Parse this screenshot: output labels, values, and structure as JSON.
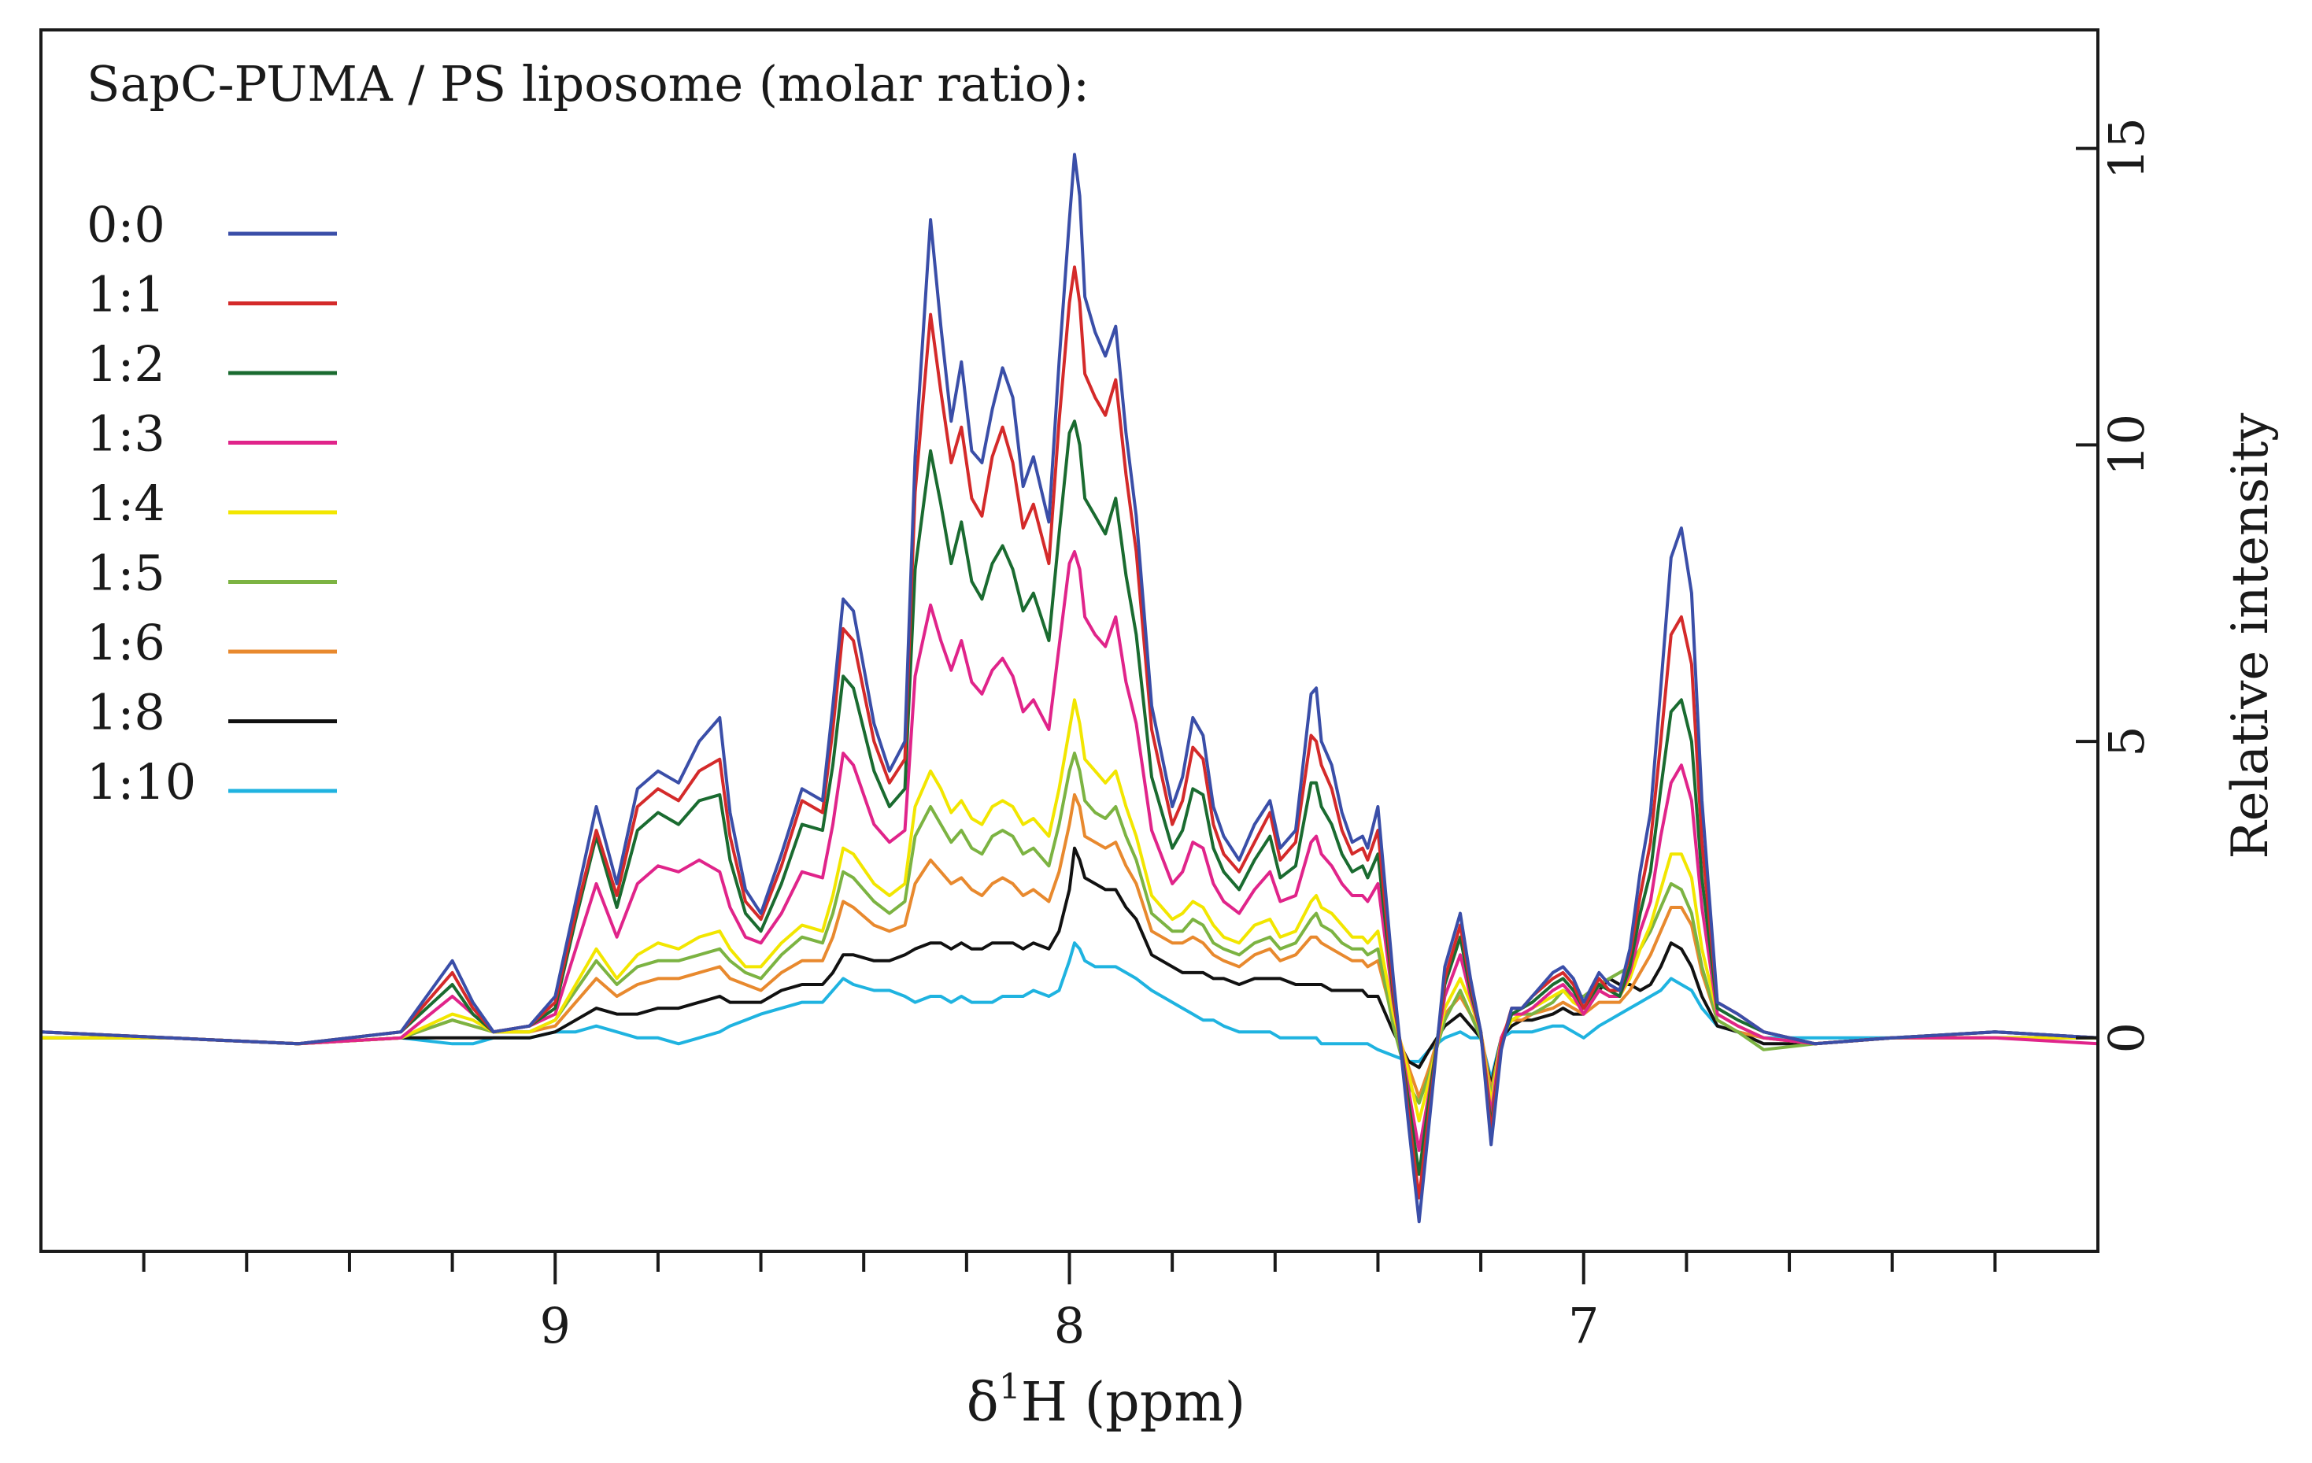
{
  "chart_data": {
    "type": "line",
    "title": "SapC-PUMA / PS liposome (molar ratio):",
    "xlabel_prefix": "δ",
    "xlabel_sup": "1",
    "xlabel_suffix": "H (ppm)",
    "ylabel": "Relative intensity",
    "xlim": [
      10.0,
      6.0
    ],
    "ylim": [
      -3.6,
      17.0
    ],
    "x_reversed": true,
    "y_axis_side": "right",
    "legend_position": "top-left",
    "x_ticks": [
      {
        "value": 9,
        "label": "9"
      },
      {
        "value": 8,
        "label": "8"
      },
      {
        "value": 7,
        "label": "7"
      }
    ],
    "x_minor_step": 0.2,
    "y_ticks": [
      {
        "value": 0,
        "label": "0"
      },
      {
        "value": 5,
        "label": "5"
      },
      {
        "value": 10,
        "label": "10"
      },
      {
        "value": 15,
        "label": "15"
      }
    ],
    "x": [
      10.0,
      9.75,
      9.5,
      9.3,
      9.2,
      9.16,
      9.12,
      9.05,
      9.0,
      8.96,
      8.92,
      8.88,
      8.84,
      8.8,
      8.76,
      8.72,
      8.68,
      8.66,
      8.63,
      8.6,
      8.56,
      8.52,
      8.48,
      8.46,
      8.44,
      8.42,
      8.38,
      8.35,
      8.32,
      8.3,
      8.27,
      8.25,
      8.23,
      8.21,
      8.19,
      8.17,
      8.15,
      8.13,
      8.11,
      8.09,
      8.07,
      8.04,
      8.02,
      8.0,
      7.99,
      7.98,
      7.97,
      7.95,
      7.93,
      7.91,
      7.89,
      7.87,
      7.84,
      7.8,
      7.78,
      7.76,
      7.74,
      7.72,
      7.7,
      7.67,
      7.64,
      7.61,
      7.59,
      7.56,
      7.53,
      7.52,
      7.51,
      7.49,
      7.47,
      7.45,
      7.43,
      7.42,
      7.4,
      7.37,
      7.34,
      7.32,
      7.3,
      7.27,
      7.24,
      7.22,
      7.2,
      7.18,
      7.16,
      7.14,
      7.12,
      7.1,
      7.06,
      7.04,
      7.02,
      7.0,
      6.97,
      6.95,
      6.93,
      6.91,
      6.89,
      6.87,
      6.85,
      6.83,
      6.81,
      6.79,
      6.77,
      6.74,
      6.7,
      6.65,
      6.55,
      6.4,
      6.2,
      6.0
    ],
    "series": [
      {
        "name": "0:0",
        "color": "#3a4ea8",
        "values": [
          0.1,
          0.0,
          -0.1,
          0.1,
          1.3,
          0.6,
          0.1,
          0.2,
          0.7,
          2.3,
          3.9,
          2.6,
          4.2,
          4.5,
          4.3,
          5.0,
          5.4,
          3.8,
          2.5,
          2.1,
          3.1,
          4.2,
          4.0,
          5.6,
          7.4,
          7.2,
          5.3,
          4.5,
          5.0,
          9.8,
          13.8,
          12.0,
          10.4,
          11.4,
          9.9,
          9.7,
          10.6,
          11.3,
          10.8,
          9.3,
          9.8,
          8.7,
          11.4,
          13.8,
          14.9,
          14.2,
          12.5,
          11.9,
          11.5,
          12.0,
          10.2,
          8.8,
          5.6,
          3.9,
          4.4,
          5.4,
          5.1,
          3.9,
          3.4,
          3.0,
          3.6,
          4.0,
          3.2,
          3.5,
          5.8,
          5.9,
          5.0,
          4.6,
          3.8,
          3.3,
          3.4,
          3.2,
          3.9,
          1.0,
          -1.5,
          -3.1,
          -1.4,
          1.2,
          2.1,
          1.0,
          0.1,
          -1.8,
          -0.2,
          0.5,
          0.5,
          0.7,
          1.1,
          1.2,
          1.0,
          0.6,
          1.1,
          0.9,
          0.8,
          1.5,
          2.8,
          3.8,
          5.9,
          8.1,
          8.6,
          7.5,
          4.0,
          0.6,
          0.4,
          0.1,
          -0.1,
          0.0,
          0.1,
          0.0
        ]
      },
      {
        "name": "1:1",
        "color": "#d42a2a",
        "values": [
          0.1,
          0.0,
          -0.1,
          0.1,
          1.1,
          0.5,
          0.1,
          0.2,
          0.6,
          2.1,
          3.5,
          2.4,
          3.9,
          4.2,
          4.0,
          4.5,
          4.7,
          3.4,
          2.3,
          2.0,
          2.9,
          4.0,
          3.8,
          5.2,
          6.9,
          6.7,
          5.0,
          4.3,
          4.7,
          9.2,
          12.2,
          10.9,
          9.7,
          10.3,
          9.1,
          8.8,
          9.8,
          10.3,
          9.7,
          8.6,
          9.0,
          8.0,
          10.4,
          12.4,
          13.0,
          12.4,
          11.2,
          10.8,
          10.5,
          11.1,
          9.5,
          8.2,
          5.2,
          3.6,
          4.0,
          4.9,
          4.7,
          3.6,
          3.1,
          2.8,
          3.3,
          3.8,
          3.0,
          3.3,
          5.1,
          5.0,
          4.6,
          4.2,
          3.5,
          3.1,
          3.2,
          3.0,
          3.5,
          0.8,
          -1.3,
          -2.7,
          -1.2,
          1.0,
          1.9,
          0.9,
          0.1,
          -1.6,
          -0.1,
          0.5,
          0.5,
          0.7,
          1.0,
          1.1,
          0.9,
          0.5,
          1.0,
          0.8,
          0.8,
          1.4,
          2.4,
          3.3,
          5.0,
          6.8,
          7.1,
          6.3,
          3.3,
          0.6,
          0.4,
          0.1,
          -0.1,
          0.0,
          0.1,
          0.0
        ]
      },
      {
        "name": "1:2",
        "color": "#1a6b30",
        "values": [
          0.1,
          0.0,
          -0.1,
          0.1,
          0.9,
          0.4,
          0.1,
          0.2,
          0.5,
          2.0,
          3.4,
          2.2,
          3.5,
          3.8,
          3.6,
          4.0,
          4.1,
          3.0,
          2.1,
          1.8,
          2.6,
          3.6,
          3.5,
          4.6,
          6.1,
          5.9,
          4.5,
          3.9,
          4.2,
          7.9,
          9.9,
          9.0,
          8.0,
          8.7,
          7.7,
          7.4,
          8.0,
          8.3,
          7.9,
          7.2,
          7.5,
          6.7,
          8.5,
          10.2,
          10.4,
          10.0,
          9.1,
          8.8,
          8.5,
          9.1,
          7.8,
          6.8,
          4.4,
          3.2,
          3.5,
          4.2,
          4.1,
          3.2,
          2.8,
          2.5,
          3.0,
          3.4,
          2.7,
          2.9,
          4.3,
          4.3,
          3.9,
          3.6,
          3.1,
          2.8,
          2.9,
          2.7,
          3.1,
          0.7,
          -1.1,
          -2.3,
          -1.0,
          0.9,
          1.7,
          0.8,
          0.1,
          -1.5,
          -0.1,
          0.4,
          0.5,
          0.6,
          0.9,
          1.0,
          0.8,
          0.5,
          0.9,
          0.8,
          0.7,
          1.2,
          2.1,
          2.8,
          4.2,
          5.5,
          5.7,
          5.0,
          2.7,
          0.5,
          0.3,
          0.1,
          -0.1,
          0.0,
          0.1,
          0.0
        ]
      },
      {
        "name": "1:3",
        "color": "#e0248a",
        "values": [
          0.1,
          0.0,
          -0.1,
          0.0,
          0.7,
          0.4,
          0.1,
          0.2,
          0.4,
          1.5,
          2.6,
          1.7,
          2.6,
          2.9,
          2.8,
          3.0,
          2.8,
          2.2,
          1.7,
          1.6,
          2.1,
          2.8,
          2.7,
          3.6,
          4.8,
          4.6,
          3.6,
          3.3,
          3.5,
          6.1,
          7.3,
          6.7,
          6.2,
          6.7,
          6.0,
          5.8,
          6.2,
          6.4,
          6.1,
          5.5,
          5.7,
          5.2,
          6.6,
          8.0,
          8.2,
          7.9,
          7.1,
          6.8,
          6.6,
          7.1,
          6.0,
          5.3,
          3.5,
          2.6,
          2.8,
          3.3,
          3.2,
          2.6,
          2.3,
          2.1,
          2.5,
          2.8,
          2.3,
          2.4,
          3.3,
          3.4,
          3.1,
          2.9,
          2.6,
          2.4,
          2.4,
          2.3,
          2.6,
          0.6,
          -0.9,
          -1.9,
          -0.9,
          0.7,
          1.4,
          0.7,
          0.1,
          -1.3,
          0.0,
          0.4,
          0.4,
          0.5,
          0.8,
          0.9,
          0.7,
          0.4,
          0.8,
          0.7,
          0.7,
          1.1,
          1.8,
          2.3,
          3.4,
          4.3,
          4.6,
          4.0,
          2.2,
          0.4,
          0.2,
          0.0,
          -0.1,
          0.0,
          0.0,
          -0.1
        ]
      },
      {
        "name": "1:4",
        "color": "#f2e600",
        "values": [
          0.0,
          0.0,
          -0.1,
          0.0,
          0.4,
          0.3,
          0.1,
          0.1,
          0.3,
          0.9,
          1.5,
          1.0,
          1.4,
          1.6,
          1.5,
          1.7,
          1.8,
          1.5,
          1.2,
          1.2,
          1.6,
          1.9,
          1.8,
          2.4,
          3.2,
          3.1,
          2.6,
          2.4,
          2.6,
          3.9,
          4.5,
          4.2,
          3.8,
          4.0,
          3.7,
          3.6,
          3.9,
          4.0,
          3.9,
          3.6,
          3.7,
          3.4,
          4.2,
          5.2,
          5.7,
          5.3,
          4.7,
          4.5,
          4.3,
          4.5,
          3.9,
          3.4,
          2.4,
          2.0,
          2.1,
          2.3,
          2.2,
          1.9,
          1.7,
          1.6,
          1.9,
          2.0,
          1.7,
          1.8,
          2.3,
          2.4,
          2.2,
          2.1,
          1.9,
          1.7,
          1.7,
          1.6,
          1.8,
          0.4,
          -0.6,
          -1.4,
          -0.7,
          0.5,
          1.0,
          0.6,
          0.1,
          -1.1,
          0.0,
          0.3,
          0.4,
          0.5,
          0.7,
          0.8,
          0.6,
          0.5,
          0.8,
          0.7,
          0.7,
          1.0,
          1.5,
          1.9,
          2.5,
          3.1,
          3.1,
          2.7,
          1.5,
          0.4,
          0.2,
          0.0,
          -0.1,
          0.0,
          0.0,
          0.0
        ]
      },
      {
        "name": "1:5",
        "color": "#7cb342",
        "values": [
          0.0,
          0.0,
          -0.1,
          0.0,
          0.3,
          0.2,
          0.1,
          0.1,
          0.3,
          0.8,
          1.3,
          0.9,
          1.2,
          1.3,
          1.3,
          1.4,
          1.5,
          1.3,
          1.1,
          1.0,
          1.4,
          1.7,
          1.6,
          2.1,
          2.8,
          2.7,
          2.3,
          2.1,
          2.3,
          3.4,
          3.9,
          3.6,
          3.3,
          3.5,
          3.2,
          3.1,
          3.4,
          3.5,
          3.4,
          3.1,
          3.2,
          2.9,
          3.6,
          4.5,
          4.8,
          4.5,
          4.0,
          3.8,
          3.7,
          3.9,
          3.4,
          3.0,
          2.1,
          1.8,
          1.8,
          2.0,
          1.9,
          1.6,
          1.5,
          1.4,
          1.6,
          1.7,
          1.5,
          1.6,
          2.0,
          2.1,
          1.9,
          1.8,
          1.6,
          1.5,
          1.5,
          1.4,
          1.5,
          0.2,
          -0.8,
          -1.1,
          -0.6,
          0.3,
          0.8,
          0.4,
          0.0,
          -1.0,
          0.0,
          0.3,
          0.4,
          0.4,
          0.6,
          0.8,
          0.7,
          0.7,
          0.9,
          1.0,
          1.1,
          1.2,
          1.5,
          1.8,
          2.2,
          2.6,
          2.5,
          2.1,
          1.2,
          0.3,
          0.1,
          -0.2,
          -0.1,
          0.0,
          0.0,
          0.0
        ]
      },
      {
        "name": "1:6",
        "color": "#e8892e",
        "values": [
          0.0,
          0.0,
          -0.1,
          0.0,
          0.3,
          0.2,
          0.1,
          0.1,
          0.2,
          0.6,
          1.0,
          0.7,
          0.9,
          1.0,
          1.0,
          1.1,
          1.2,
          1.0,
          0.9,
          0.8,
          1.1,
          1.3,
          1.3,
          1.7,
          2.3,
          2.2,
          1.9,
          1.8,
          1.9,
          2.6,
          3.0,
          2.8,
          2.6,
          2.7,
          2.5,
          2.4,
          2.6,
          2.7,
          2.6,
          2.4,
          2.5,
          2.3,
          2.8,
          3.6,
          4.1,
          3.9,
          3.4,
          3.3,
          3.2,
          3.3,
          2.9,
          2.6,
          1.8,
          1.6,
          1.6,
          1.7,
          1.6,
          1.4,
          1.3,
          1.2,
          1.4,
          1.5,
          1.3,
          1.4,
          1.7,
          1.7,
          1.6,
          1.5,
          1.4,
          1.3,
          1.3,
          1.2,
          1.3,
          0.3,
          -0.5,
          -1.0,
          -0.5,
          0.4,
          0.7,
          0.4,
          0.1,
          -0.9,
          0.0,
          0.3,
          0.3,
          0.4,
          0.5,
          0.6,
          0.5,
          0.4,
          0.6,
          0.6,
          0.6,
          0.8,
          1.1,
          1.4,
          1.8,
          2.2,
          2.2,
          1.9,
          1.1,
          0.3,
          0.1,
          0.0,
          -0.1,
          0.0,
          0.0,
          0.0
        ]
      },
      {
        "name": "1:8",
        "color": "#111111",
        "values": [
          0.0,
          0.0,
          -0.1,
          0.0,
          0.0,
          0.0,
          0.0,
          0.0,
          0.1,
          0.3,
          0.5,
          0.4,
          0.4,
          0.5,
          0.5,
          0.6,
          0.7,
          0.6,
          0.6,
          0.6,
          0.8,
          0.9,
          0.9,
          1.1,
          1.4,
          1.4,
          1.3,
          1.3,
          1.4,
          1.5,
          1.6,
          1.6,
          1.5,
          1.6,
          1.5,
          1.5,
          1.6,
          1.6,
          1.6,
          1.5,
          1.6,
          1.5,
          1.8,
          2.5,
          3.2,
          3.0,
          2.7,
          2.6,
          2.5,
          2.5,
          2.2,
          2.0,
          1.4,
          1.2,
          1.1,
          1.1,
          1.1,
          1.0,
          1.0,
          0.9,
          1.0,
          1.0,
          1.0,
          0.9,
          0.9,
          0.9,
          0.9,
          0.8,
          0.8,
          0.8,
          0.8,
          0.7,
          0.7,
          0.1,
          -0.4,
          -0.5,
          -0.2,
          0.2,
          0.4,
          0.2,
          0.0,
          -0.8,
          0.0,
          0.2,
          0.3,
          0.3,
          0.4,
          0.5,
          0.4,
          0.4,
          0.8,
          1.0,
          0.9,
          0.9,
          0.8,
          0.9,
          1.2,
          1.6,
          1.5,
          1.2,
          0.7,
          0.2,
          0.1,
          -0.1,
          -0.1,
          0.0,
          0.0,
          0.0
        ]
      },
      {
        "name": "1:10",
        "color": "#1fb3e0",
        "values": [
          0.0,
          0.0,
          -0.1,
          0.0,
          -0.1,
          -0.1,
          0.0,
          0.0,
          0.1,
          0.1,
          0.2,
          0.1,
          0.0,
          0.0,
          -0.1,
          0.0,
          0.1,
          0.2,
          0.3,
          0.4,
          0.5,
          0.6,
          0.6,
          0.8,
          1.0,
          0.9,
          0.8,
          0.8,
          0.7,
          0.6,
          0.7,
          0.7,
          0.6,
          0.7,
          0.6,
          0.6,
          0.6,
          0.7,
          0.7,
          0.7,
          0.8,
          0.7,
          0.8,
          1.3,
          1.6,
          1.5,
          1.3,
          1.2,
          1.2,
          1.2,
          1.1,
          1.0,
          0.8,
          0.6,
          0.5,
          0.4,
          0.3,
          0.3,
          0.2,
          0.1,
          0.1,
          0.1,
          0.0,
          0.0,
          0.0,
          0.0,
          -0.1,
          -0.1,
          -0.1,
          -0.1,
          -0.1,
          -0.1,
          -0.2,
          -0.3,
          -0.4,
          -0.4,
          -0.2,
          0.0,
          0.1,
          0.0,
          0.0,
          -0.7,
          0.0,
          0.1,
          0.1,
          0.1,
          0.2,
          0.2,
          0.1,
          0.0,
          0.2,
          0.3,
          0.4,
          0.5,
          0.6,
          0.7,
          0.8,
          1.0,
          0.9,
          0.8,
          0.5,
          0.2,
          0.1,
          0.0,
          0.0,
          0.0,
          0.1,
          0.0
        ]
      }
    ]
  }
}
